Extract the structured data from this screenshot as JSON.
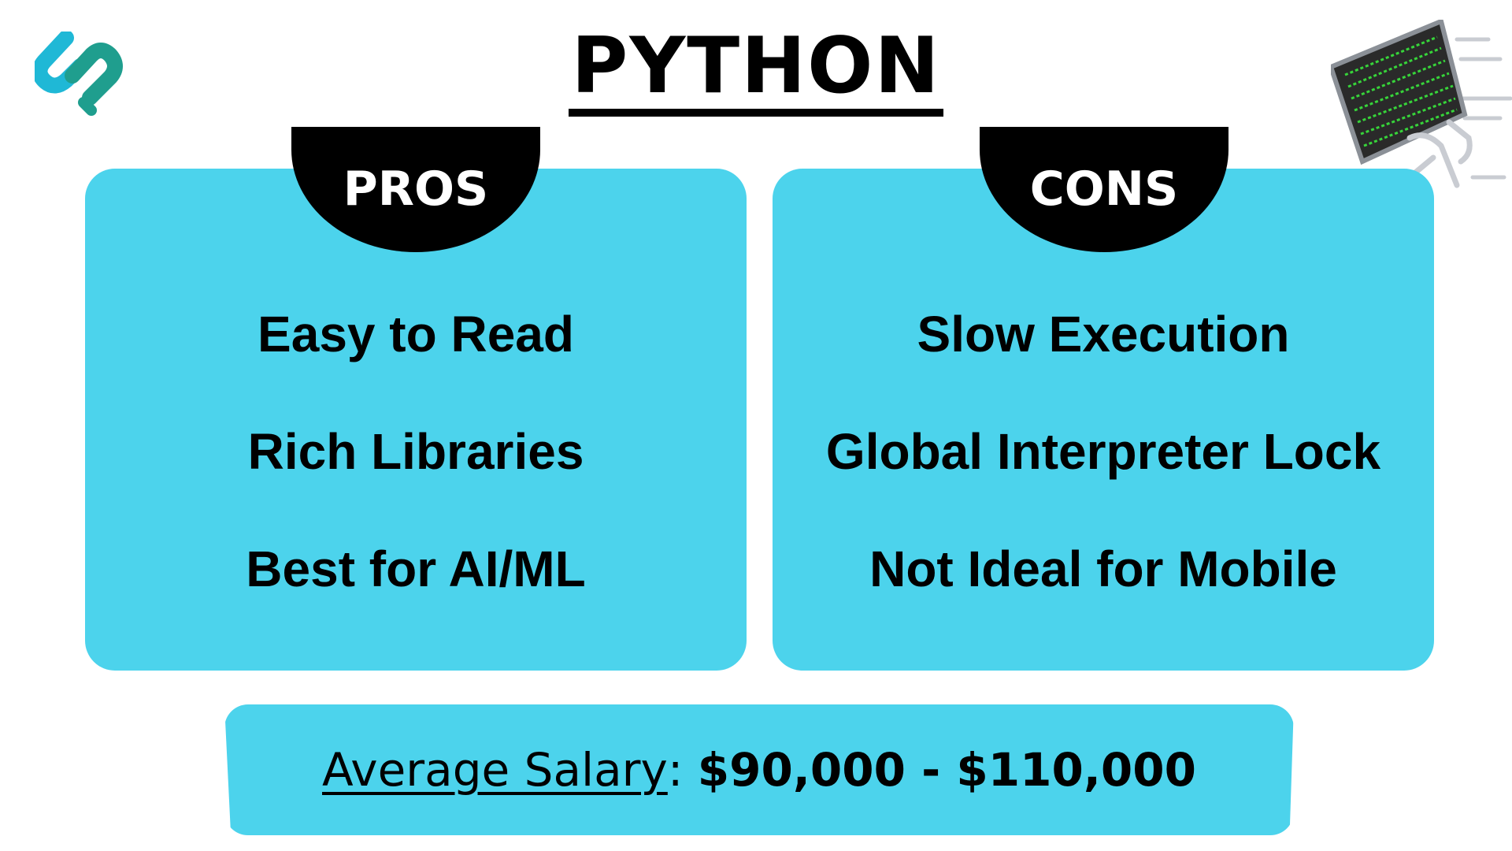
{
  "title": "PYTHON",
  "pros": {
    "label": "PROS",
    "items": [
      "Easy to Read",
      "Rich Libraries",
      "Best for AI/ML"
    ]
  },
  "cons": {
    "label": "CONS",
    "items": [
      "Slow Execution",
      "Global Interpreter Lock",
      "Not Ideal for Mobile"
    ]
  },
  "salary": {
    "label": "Average Salary",
    "separator": ": ",
    "value": "$90,000 - $110,000"
  },
  "colors": {
    "panel": "#4cd3ec",
    "tab": "#000000",
    "logo_primary": "#1fb8d6",
    "logo_secondary": "#1f9e8e",
    "terminal_text": "#37d43a"
  },
  "icons": {
    "logo": "brand-logo-icon",
    "illustration": "running-computer-icon"
  }
}
